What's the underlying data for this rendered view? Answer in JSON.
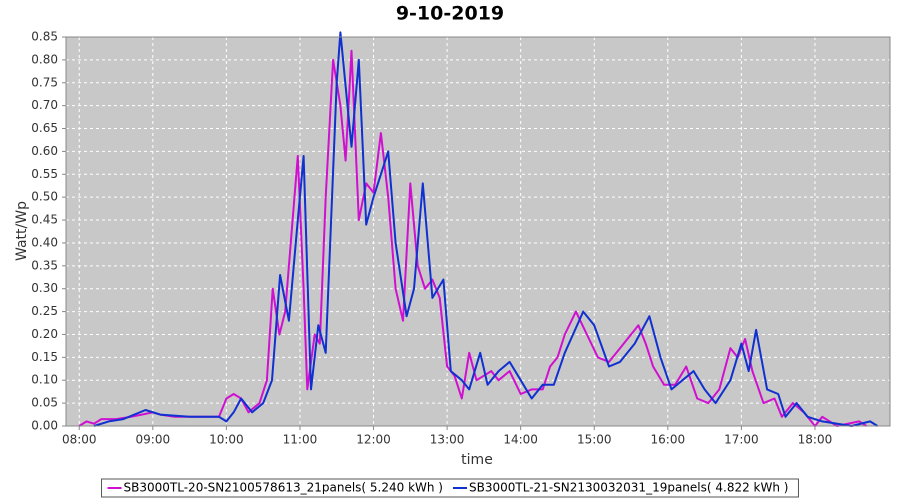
{
  "chart_data": {
    "type": "line",
    "title": "9-10-2019",
    "x_label": "time",
    "y_label": "Watt/Wp",
    "xlim": [
      7.82,
      19.02
    ],
    "xticks": [
      {
        "value": 8,
        "label": "08:00"
      },
      {
        "value": 9,
        "label": "09:00"
      },
      {
        "value": 10,
        "label": "10:00"
      },
      {
        "value": 11,
        "label": "11:00"
      },
      {
        "value": 12,
        "label": "12:00"
      },
      {
        "value": 13,
        "label": "13:00"
      },
      {
        "value": 14,
        "label": "14:00"
      },
      {
        "value": 15,
        "label": "15:00"
      },
      {
        "value": 16,
        "label": "16:00"
      },
      {
        "value": 17,
        "label": "17:00"
      },
      {
        "value": 18,
        "label": "18:00"
      }
    ],
    "ylim": [
      0,
      0.85
    ],
    "yticks": [
      {
        "value": 0,
        "label": "0.00"
      },
      {
        "value": 0.05,
        "label": "0.05"
      },
      {
        "value": 0.1,
        "label": "0.10"
      },
      {
        "value": 0.15,
        "label": "0.15"
      },
      {
        "value": 0.2,
        "label": "0.20"
      },
      {
        "value": 0.25,
        "label": "0.25"
      },
      {
        "value": 0.3,
        "label": "0.30"
      },
      {
        "value": 0.35,
        "label": "0.35"
      },
      {
        "value": 0.4,
        "label": "0.40"
      },
      {
        "value": 0.45,
        "label": "0.45"
      },
      {
        "value": 0.5,
        "label": "0.50"
      },
      {
        "value": 0.55,
        "label": "0.55"
      },
      {
        "value": 0.6,
        "label": "0.60"
      },
      {
        "value": 0.65,
        "label": "0.65"
      },
      {
        "value": 0.7,
        "label": "0.70"
      },
      {
        "value": 0.75,
        "label": "0.75"
      },
      {
        "value": 0.8,
        "label": "0.80"
      },
      {
        "value": 0.85,
        "label": "0.85"
      }
    ],
    "grid": true,
    "legend": "bottom",
    "series": [
      {
        "name": "SB3000TL-20-SN2100578613_21panels( 5.240 kWh )",
        "color": "#d010d0",
        "x": [
          8.0,
          8.1,
          8.2,
          8.3,
          8.5,
          8.7,
          8.85,
          9.0,
          9.1,
          9.3,
          9.5,
          9.7,
          9.9,
          10.0,
          10.1,
          10.2,
          10.3,
          10.45,
          10.55,
          10.63,
          10.72,
          10.8,
          10.9,
          10.97,
          11.05,
          11.1,
          11.2,
          11.27,
          11.35,
          11.45,
          11.55,
          11.62,
          11.7,
          11.8,
          11.9,
          12.0,
          12.1,
          12.2,
          12.3,
          12.4,
          12.5,
          12.6,
          12.7,
          12.8,
          12.9,
          13.0,
          13.1,
          13.2,
          13.3,
          13.4,
          13.5,
          13.6,
          13.7,
          13.85,
          14.0,
          14.15,
          14.3,
          14.4,
          14.5,
          14.6,
          14.75,
          14.9,
          15.05,
          15.2,
          15.35,
          15.5,
          15.6,
          15.7,
          15.8,
          15.95,
          16.1,
          16.25,
          16.4,
          16.55,
          16.7,
          16.85,
          16.95,
          17.05,
          17.15,
          17.3,
          17.45,
          17.55,
          17.7,
          17.85,
          18.0,
          18.1,
          18.3,
          18.6,
          18.7
        ],
        "values": [
          0,
          0.01,
          0.005,
          0.015,
          0.015,
          0.02,
          0.025,
          0.03,
          0.025,
          0.02,
          0.02,
          0.02,
          0.02,
          0.06,
          0.07,
          0.06,
          0.03,
          0.05,
          0.1,
          0.3,
          0.2,
          0.25,
          0.45,
          0.59,
          0.3,
          0.08,
          0.2,
          0.18,
          0.5,
          0.8,
          0.7,
          0.58,
          0.82,
          0.45,
          0.53,
          0.51,
          0.64,
          0.5,
          0.3,
          0.23,
          0.53,
          0.35,
          0.3,
          0.32,
          0.28,
          0.13,
          0.11,
          0.06,
          0.16,
          0.1,
          0.11,
          0.12,
          0.1,
          0.12,
          0.07,
          0.08,
          0.08,
          0.13,
          0.15,
          0.2,
          0.25,
          0.2,
          0.15,
          0.14,
          0.17,
          0.2,
          0.22,
          0.18,
          0.13,
          0.09,
          0.09,
          0.13,
          0.06,
          0.05,
          0.08,
          0.17,
          0.15,
          0.19,
          0.12,
          0.05,
          0.06,
          0.02,
          0.05,
          0.03,
          0,
          0.02,
          0,
          0.01,
          0
        ]
      },
      {
        "name": "SB3000TL-21-SN2130032031_19panels( 4.822 kWh )",
        "color": "#1030d0",
        "x": [
          8.2,
          8.4,
          8.6,
          8.9,
          9.1,
          9.5,
          9.9,
          10.0,
          10.1,
          10.2,
          10.35,
          10.5,
          10.62,
          10.73,
          10.85,
          10.97,
          11.05,
          11.15,
          11.25,
          11.35,
          11.5,
          11.55,
          11.7,
          11.8,
          11.9,
          12.0,
          12.1,
          12.2,
          12.3,
          12.45,
          12.55,
          12.67,
          12.8,
          12.95,
          13.05,
          13.2,
          13.3,
          13.45,
          13.55,
          13.7,
          13.85,
          14.0,
          14.15,
          14.3,
          14.45,
          14.6,
          14.85,
          15.0,
          15.2,
          15.35,
          15.55,
          15.75,
          15.9,
          16.05,
          16.2,
          16.35,
          16.5,
          16.65,
          16.85,
          17.0,
          17.1,
          17.2,
          17.35,
          17.5,
          17.6,
          17.75,
          17.9,
          18.1,
          18.5,
          18.75,
          18.85
        ],
        "values": [
          0,
          0.01,
          0.015,
          0.035,
          0.025,
          0.02,
          0.02,
          0.01,
          0.03,
          0.06,
          0.03,
          0.05,
          0.1,
          0.33,
          0.23,
          0.45,
          0.59,
          0.08,
          0.22,
          0.16,
          0.75,
          0.86,
          0.61,
          0.8,
          0.44,
          0.5,
          0.55,
          0.6,
          0.4,
          0.24,
          0.3,
          0.53,
          0.28,
          0.32,
          0.12,
          0.1,
          0.08,
          0.16,
          0.09,
          0.12,
          0.14,
          0.1,
          0.06,
          0.09,
          0.09,
          0.16,
          0.25,
          0.22,
          0.13,
          0.14,
          0.18,
          0.24,
          0.15,
          0.08,
          0.1,
          0.12,
          0.08,
          0.05,
          0.1,
          0.18,
          0.12,
          0.21,
          0.08,
          0.07,
          0.02,
          0.05,
          0.02,
          0.01,
          0,
          0.01,
          0
        ]
      }
    ]
  }
}
